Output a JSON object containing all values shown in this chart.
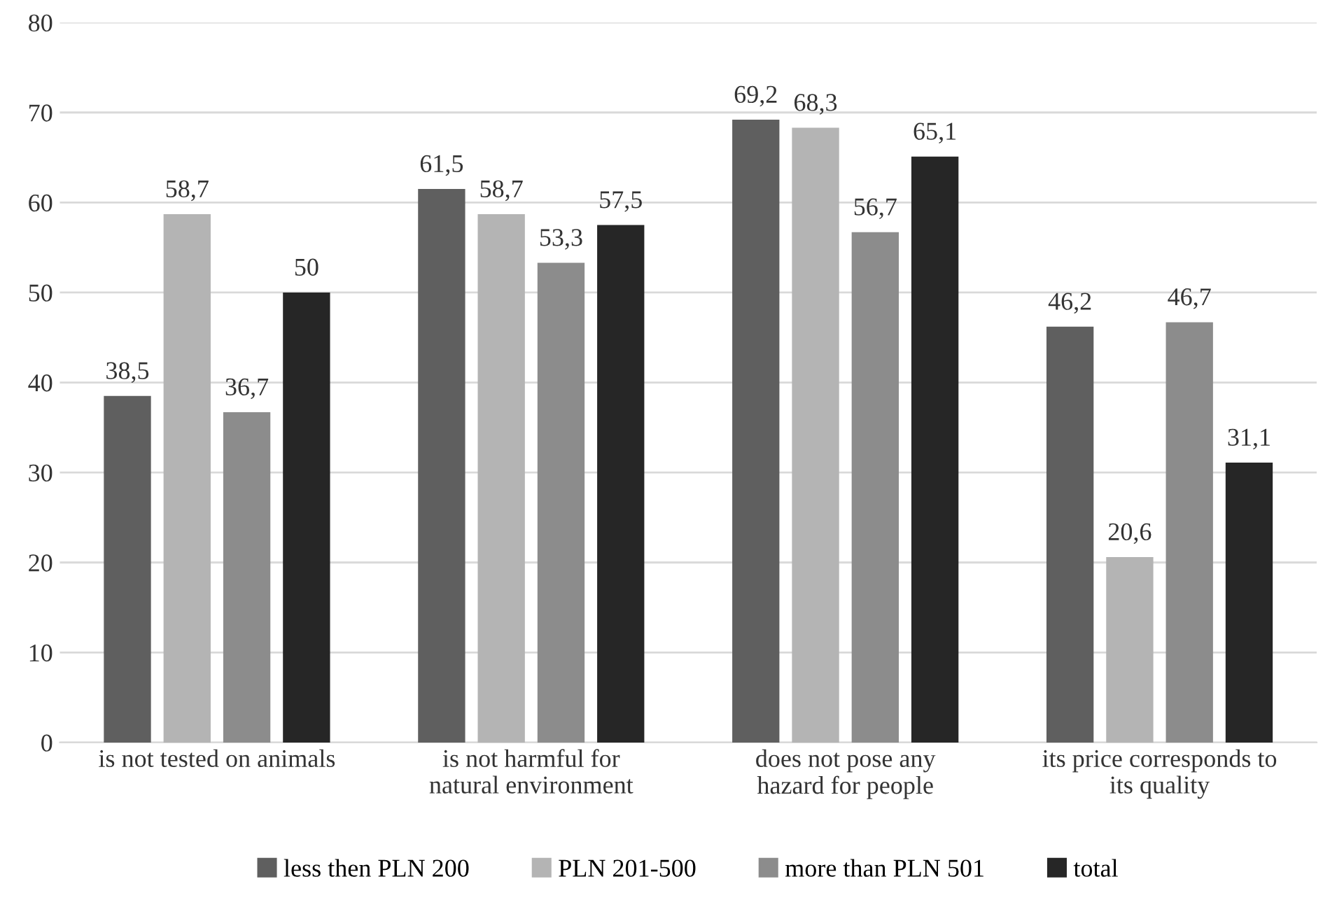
{
  "chart_data": {
    "type": "bar",
    "categories": [
      "is not tested on animals",
      "is not harmful for\nnatural environment",
      "does not pose any\nhazard for people",
      "its price corresponds to\nits quality"
    ],
    "series": [
      {
        "name": "less then PLN 200",
        "color": "#5f5f5f",
        "values": [
          38.5,
          61.5,
          69.2,
          46.2
        ],
        "value_labels": [
          "38,5",
          "61,5",
          "69,2",
          "46,2"
        ]
      },
      {
        "name": "PLN 201-500",
        "color": "#b4b4b4",
        "values": [
          58.7,
          58.7,
          68.3,
          20.6
        ],
        "value_labels": [
          "58,7",
          "58,7",
          "68,3",
          "20,6"
        ]
      },
      {
        "name": "more than PLN 501",
        "color": "#8c8c8c",
        "values": [
          36.7,
          53.3,
          56.7,
          46.7
        ],
        "value_labels": [
          "36,7",
          "53,3",
          "56,7",
          "46,7"
        ]
      },
      {
        "name": "total",
        "color": "#262626",
        "values": [
          50,
          57.5,
          65.1,
          31.1
        ],
        "value_labels": [
          "50",
          "57,5",
          "65,1",
          "31,1"
        ]
      }
    ],
    "ylim": [
      0,
      80
    ],
    "yticks": [
      0,
      10,
      20,
      30,
      40,
      50,
      60,
      70,
      80
    ],
    "grid": "y",
    "legend": "bottom"
  }
}
